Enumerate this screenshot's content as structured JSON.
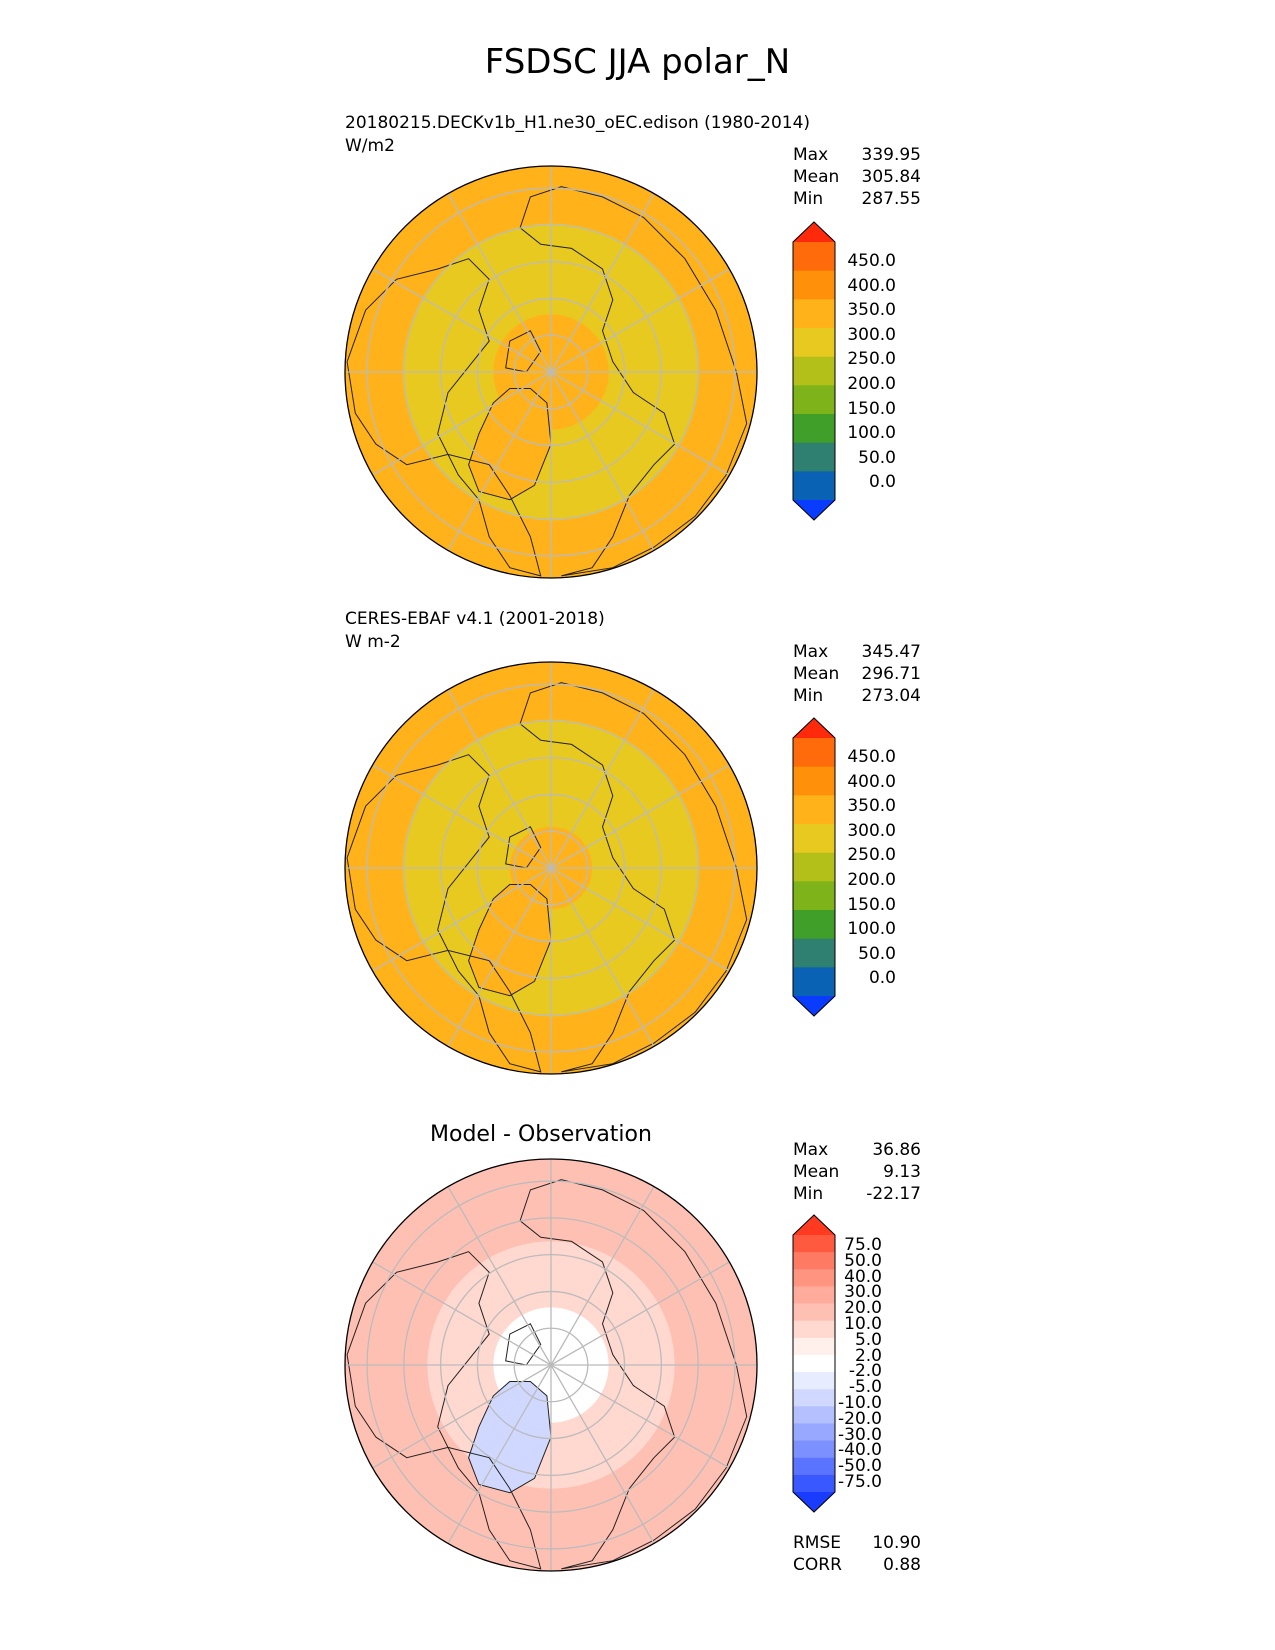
{
  "chart_data": {
    "title": "FSDSC JJA polar_N",
    "panels": [
      {
        "type": "heatmap",
        "projection": "polar-north",
        "subtitle": "20180215.DECKv1b_H1.ne30_oEC.edison (1980-2014)",
        "units": "W/m2",
        "stats": {
          "labels": [
            "Max",
            "Mean",
            "Min"
          ],
          "values": [
            "339.95",
            "305.84",
            "287.55"
          ]
        },
        "colorbar": {
          "ticks": [
            "450.0",
            "400.0",
            "350.0",
            "300.0",
            "250.0",
            "200.0",
            "150.0",
            "100.0",
            "50.0",
            "0.0"
          ],
          "colors": [
            "#ff2a0c",
            "#ff6a0a",
            "#ff910a",
            "#ffb21a",
            "#e8c920",
            "#b4c01a",
            "#7fb31a",
            "#3f9f28",
            "#2f8070",
            "#0a62b4",
            "#0a3cff"
          ]
        },
        "field": {
          "ocean_value": 330,
          "interior_value": 295,
          "pole_value": 320
        }
      },
      {
        "type": "heatmap",
        "projection": "polar-north",
        "subtitle": "CERES-EBAF v4.1 (2001-2018)",
        "units": "W m-2",
        "stats": {
          "labels": [
            "Max",
            "Mean",
            "Min"
          ],
          "values": [
            "345.47",
            "296.71",
            "273.04"
          ]
        },
        "colorbar": {
          "ticks": [
            "450.0",
            "400.0",
            "350.0",
            "300.0",
            "250.0",
            "200.0",
            "150.0",
            "100.0",
            "50.0",
            "0.0"
          ],
          "colors": [
            "#ff2a0c",
            "#ff6a0a",
            "#ff910a",
            "#ffb21a",
            "#e8c920",
            "#b4c01a",
            "#7fb31a",
            "#3f9f28",
            "#2f8070",
            "#0a62b4",
            "#0a3cff"
          ]
        },
        "field": {
          "ocean_value": 330,
          "interior_value": 290,
          "pole_value": 315
        }
      },
      {
        "type": "heatmap",
        "projection": "polar-north",
        "subtitle": "Model - Observation",
        "stats": {
          "labels": [
            "Max",
            "Mean",
            "Min"
          ],
          "values": [
            "36.86",
            "9.13",
            "-22.17"
          ]
        },
        "colorbar": {
          "ticks": [
            "75.0",
            "50.0",
            "40.0",
            "30.0",
            "20.0",
            "10.0",
            "5.0",
            "2.0",
            "-2.0",
            "-5.0",
            "-10.0",
            "-20.0",
            "-30.0",
            "-40.0",
            "-50.0",
            "-75.0"
          ],
          "colors": [
            "#ff3a20",
            "#ff5a40",
            "#ff7a62",
            "#ff9480",
            "#ffac9c",
            "#ffc0b4",
            "#ffd8d0",
            "#fff0ec",
            "#ffffff",
            "#e8ecff",
            "#d0d8ff",
            "#b4c0ff",
            "#98a8ff",
            "#7c90ff",
            "#5a74ff",
            "#3a58ff",
            "#1a3cff"
          ]
        },
        "field": {
          "background_value": 12,
          "pole_value": 0,
          "greenland_value": -10
        },
        "metrics": {
          "labels": [
            "RMSE",
            "CORR"
          ],
          "values": [
            "10.90",
            "0.88"
          ]
        }
      }
    ]
  }
}
